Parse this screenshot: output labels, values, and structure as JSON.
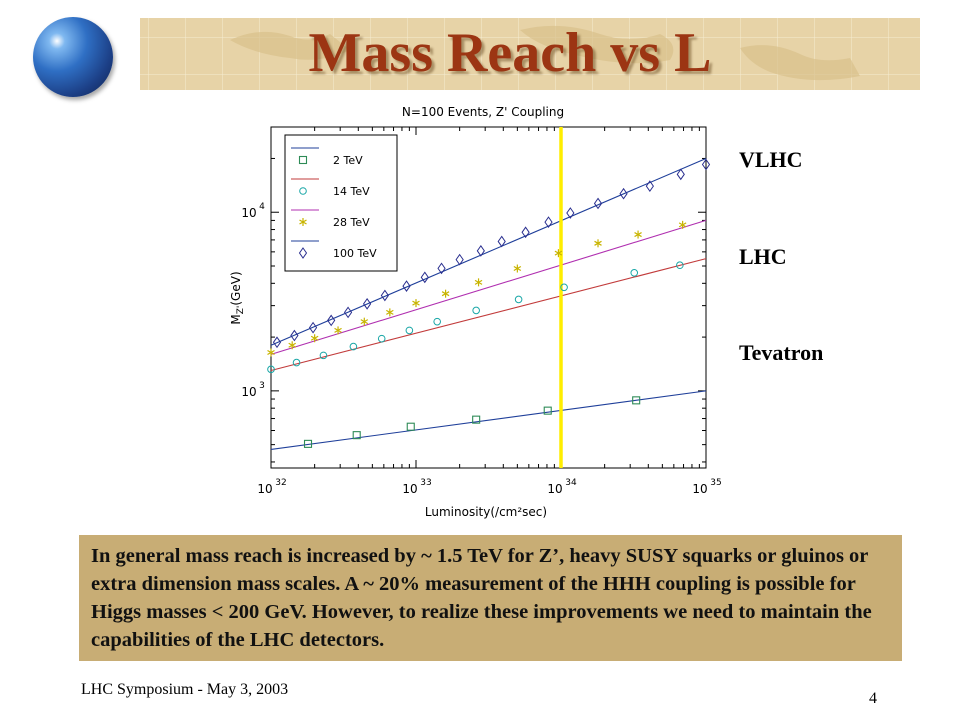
{
  "slide": {
    "title": "Mass Reach vs L",
    "side_labels": [
      "VLHC",
      "LHC",
      "Tevatron"
    ],
    "body_text": "In general mass reach is increased by ~ 1.5 TeV for Z’, heavy SUSY squarks or gluinos or extra dimension mass scales. A ~ 20% measurement of the HHH coupling is possible for Higgs masses < 200 GeV. However, to realize these improvements we need to maintain the capabilities of the LHC detectors.",
    "footer": "LHC Symposium -  May 3, 2003",
    "page_number": "4",
    "colors": {
      "title": "#9c3513",
      "textbox": "#c8ad75",
      "highlight_line": "#ffee00"
    },
    "icons": [
      "globe-icon"
    ]
  },
  "chart_data": {
    "type": "scatter",
    "title": "N=100 Events, Z' Coupling",
    "xlabel": "Luminosity(/cm²sec)",
    "ylabel_main": "M",
    "ylabel_sub": "Z'",
    "ylabel_unit": "(GeV)",
    "xscale": "log",
    "yscale": "log",
    "xlim": [
      1e+32,
      1e+35
    ],
    "ylim": [
      370,
      30000
    ],
    "x_ticks": [
      {
        "exp": 32,
        "label": "10",
        "sup": "32"
      },
      {
        "exp": 33,
        "label": "10",
        "sup": "33"
      },
      {
        "exp": 34,
        "label": "10",
        "sup": "34"
      },
      {
        "exp": 35,
        "label": "10",
        "sup": "35"
      }
    ],
    "y_ticks": [
      {
        "value": 1000,
        "label": "10",
        "sup": "3"
      },
      {
        "value": 10000,
        "label": "10",
        "sup": "4"
      }
    ],
    "vertical_marker_x": 1e+34,
    "legend_position": "top-left",
    "series": [
      {
        "name": "2 TeV",
        "marker": "square",
        "marker_color": "#2e8b57",
        "line_color": "#1f3f9a",
        "curve": {
          "x0": 1e+32,
          "y0": 470,
          "x1": 1e+35,
          "y1": 1000
        },
        "x": [
          1.8e+32,
          3.9e+32,
          9.2e+32,
          2.6e+33,
          8.1e+33,
          3.3e+34
        ],
        "y": [
          505,
          565,
          630,
          690,
          775,
          885
        ]
      },
      {
        "name": "14 TeV",
        "marker": "circle",
        "marker_color": "#1aa7a7",
        "line_color": "#c23b3b",
        "curve": {
          "x0": 1e+32,
          "y0": 1300,
          "x1": 1e+35,
          "y1": 5500
        },
        "x": [
          1e+32,
          1.5e+32,
          2.3e+32,
          3.7e+32,
          5.8e+32,
          9e+32,
          1.4e+33,
          2.6e+33,
          5.1e+33,
          1.05e+34,
          3.2e+34,
          6.6e+34
        ],
        "y": [
          1320,
          1440,
          1580,
          1770,
          1960,
          2180,
          2440,
          2820,
          3250,
          3800,
          4580,
          5050
        ]
      },
      {
        "name": "28 TeV",
        "marker": "asterisk",
        "marker_color": "#c8b400",
        "line_color": "#b02fb0",
        "curve": {
          "x0": 1e+32,
          "y0": 1600,
          "x1": 1e+35,
          "y1": 9000
        },
        "x": [
          1e+32,
          1.4e+32,
          2e+32,
          2.9e+32,
          4.4e+32,
          6.6e+32,
          1e+33,
          1.6e+33,
          2.7e+33,
          5e+33,
          9.6e+33,
          1.8e+34,
          3.4e+34,
          6.9e+34
        ],
        "y": [
          1640,
          1800,
          1970,
          2180,
          2440,
          2750,
          3100,
          3500,
          4050,
          4840,
          5900,
          6700,
          7500,
          8500
        ]
      },
      {
        "name": "100 TeV",
        "marker": "diamond",
        "marker_color": "#2a2f8f",
        "line_color": "#1f3f9a",
        "curve": {
          "x0": 1e+32,
          "y0": 1800,
          "x1": 1e+35,
          "y1": 20000
        },
        "x": [
          1.1e+32,
          1.45e+32,
          1.95e+32,
          2.6e+32,
          3.4e+32,
          4.6e+32,
          6.1e+32,
          8.6e+32,
          1.15e+33,
          1.5e+33,
          2e+33,
          2.8e+33,
          3.9e+33,
          5.7e+33,
          8.2e+33,
          1.16e+34,
          1.8e+34,
          2.7e+34,
          4.1e+34,
          6.7e+34,
          1e+35
        ],
        "y": [
          1870,
          2040,
          2260,
          2480,
          2750,
          3070,
          3420,
          3860,
          4320,
          4850,
          5430,
          6080,
          6860,
          7720,
          8800,
          9900,
          11200,
          12700,
          14000,
          16300,
          18500
        ]
      }
    ]
  }
}
